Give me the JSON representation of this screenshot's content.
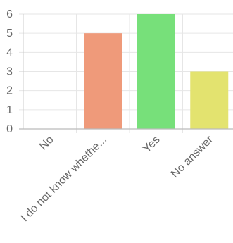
{
  "chart_data": {
    "type": "bar",
    "categories": [
      "No",
      "I do not know whethe...",
      "Yes",
      "No answer"
    ],
    "values": [
      0,
      5,
      6,
      3
    ],
    "colors": [
      "#ef9a9a",
      "#ef9a7a",
      "#77e07a",
      "#e3e36f"
    ],
    "ylim": [
      0,
      6
    ],
    "yticks": [
      0,
      1,
      2,
      3,
      4,
      5,
      6
    ],
    "grid": true,
    "title": "",
    "xlabel": "",
    "ylabel": ""
  }
}
